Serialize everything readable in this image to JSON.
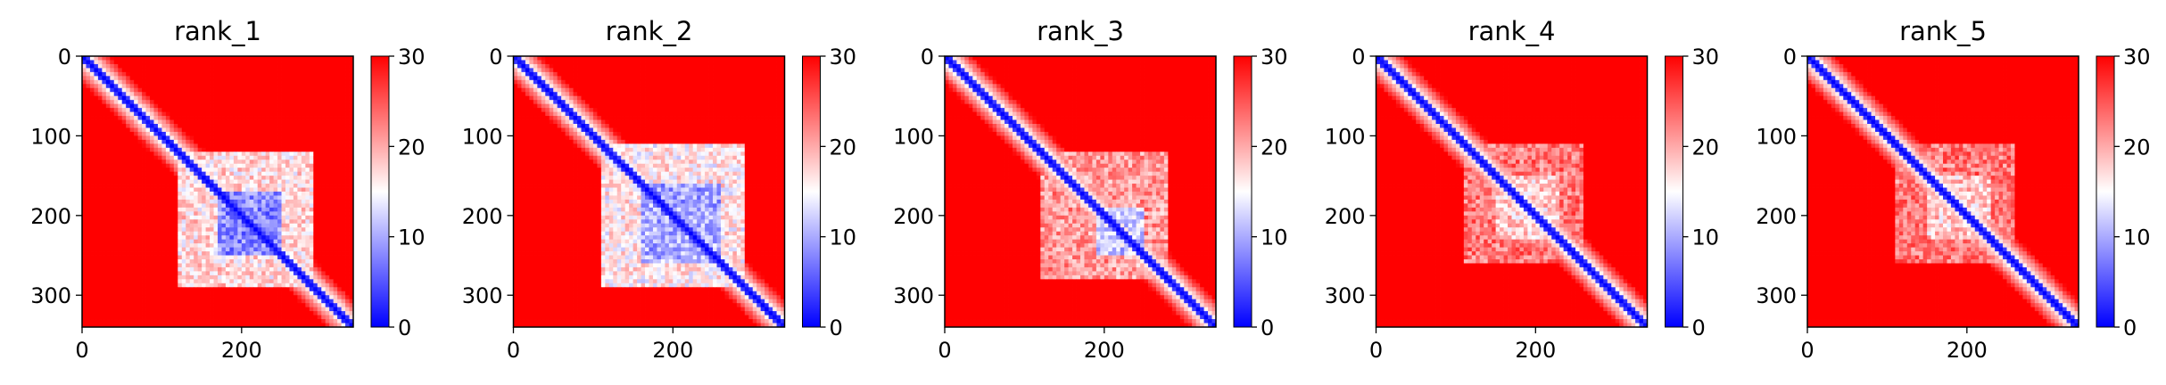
{
  "chart_data": [
    {
      "type": "heatmap",
      "title": "rank_1",
      "xlabel": "",
      "ylabel": "",
      "xlim": [
        0,
        340
      ],
      "ylim": [
        340,
        0
      ],
      "xticks": [
        0,
        200
      ],
      "yticks": [
        0,
        100,
        200,
        300
      ],
      "colorbar": {
        "min": 0,
        "max": 30,
        "ticks": [
          0,
          10,
          20,
          30
        ],
        "colormap": "bwr"
      },
      "matrix_size": 340,
      "low_distance_regions": [
        {
          "range": [
            170,
            250
          ],
          "value": 5
        },
        {
          "range": [
            120,
            290
          ],
          "value": 14
        }
      ]
    },
    {
      "type": "heatmap",
      "title": "rank_2",
      "xlabel": "",
      "ylabel": "",
      "xlim": [
        0,
        340
      ],
      "ylim": [
        340,
        0
      ],
      "xticks": [
        0,
        200
      ],
      "yticks": [
        0,
        100,
        200,
        300
      ],
      "colorbar": {
        "min": 0,
        "max": 30,
        "ticks": [
          0,
          10,
          20,
          30
        ],
        "colormap": "bwr"
      },
      "matrix_size": 340,
      "low_distance_regions": [
        {
          "range": [
            160,
            260
          ],
          "value": 7
        },
        {
          "range": [
            110,
            290
          ],
          "value": 13
        }
      ]
    },
    {
      "type": "heatmap",
      "title": "rank_3",
      "xlabel": "",
      "ylabel": "",
      "xlim": [
        0,
        340
      ],
      "ylim": [
        340,
        0
      ],
      "xticks": [
        0,
        200
      ],
      "yticks": [
        0,
        100,
        200,
        300
      ],
      "colorbar": {
        "min": 0,
        "max": 30,
        "ticks": [
          0,
          10,
          20,
          30
        ],
        "colormap": "bwr"
      },
      "matrix_size": 340,
      "low_distance_regions": [
        {
          "range": [
            190,
            250
          ],
          "value": 9
        },
        {
          "range": [
            120,
            280
          ],
          "value": 18
        }
      ]
    },
    {
      "type": "heatmap",
      "title": "rank_4",
      "xlabel": "",
      "ylabel": "",
      "xlim": [
        0,
        340
      ],
      "ylim": [
        340,
        0
      ],
      "xticks": [
        0,
        200
      ],
      "yticks": [
        0,
        100,
        200,
        300
      ],
      "colorbar": {
        "min": 0,
        "max": 30,
        "ticks": [
          0,
          10,
          20,
          30
        ],
        "colormap": "bwr"
      },
      "matrix_size": 340,
      "low_distance_regions": [
        {
          "range": [
            150,
            230
          ],
          "value": 15
        },
        {
          "range": [
            110,
            260
          ],
          "value": 20
        }
      ]
    },
    {
      "type": "heatmap",
      "title": "rank_5",
      "xlabel": "",
      "ylabel": "",
      "xlim": [
        0,
        340
      ],
      "ylim": [
        340,
        0
      ],
      "xticks": [
        0,
        200
      ],
      "yticks": [
        0,
        100,
        200,
        300
      ],
      "colorbar": {
        "min": 0,
        "max": 30,
        "ticks": [
          0,
          10,
          20,
          30
        ],
        "colormap": "bwr"
      },
      "matrix_size": 340,
      "low_distance_regions": [
        {
          "range": [
            150,
            230
          ],
          "value": 15
        },
        {
          "range": [
            110,
            260
          ],
          "value": 20
        }
      ]
    }
  ]
}
